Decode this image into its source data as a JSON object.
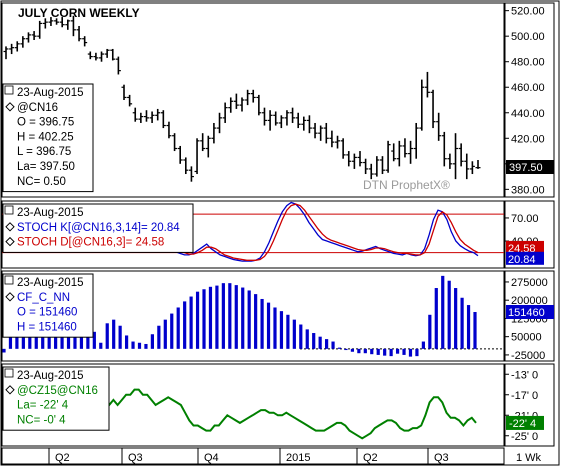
{
  "title": "JULY CORN WEEKLY",
  "watermark": "DTN ProphetX®",
  "x_axis": {
    "labels": [
      "Q2",
      "Q3",
      "Q4",
      "2015",
      "Q2",
      "Q3"
    ],
    "right_label": "1 Wk"
  },
  "panels": [
    {
      "id": "price",
      "legend": [
        {
          "text": "23-Aug-2015",
          "color": "#000000"
        },
        {
          "text": "@CN16",
          "color": "#000000",
          "marker": true
        },
        {
          "text": "O = 396.75",
          "color": "#000000"
        },
        {
          "text": "H = 402.25",
          "color": "#000000"
        },
        {
          "text": "L = 396.75",
          "color": "#000000"
        },
        {
          "text": "La= 397.50",
          "color": "#000000"
        },
        {
          "text": "NC= 0.50",
          "color": "#000000"
        }
      ],
      "y_ticks": [
        "520.00",
        "500.00",
        "480.00",
        "460.00",
        "440.00",
        "420.00",
        "400.00",
        "380.00"
      ],
      "last_badge": {
        "text": "397.50",
        "bg": "#000000",
        "fg": "#ffffff"
      }
    },
    {
      "id": "stoch",
      "legend": [
        {
          "text": "23-Aug-2015",
          "color": "#000000"
        },
        {
          "text": "STOCH K[@CN16,3,14]= 20.84",
          "color": "#0000cc",
          "marker": true
        },
        {
          "text": "STOCH D[@CN16,3]= 24.58",
          "color": "#cc0000",
          "marker": true
        }
      ],
      "y_ticks": [
        "70.00",
        "40.00"
      ],
      "badges": [
        {
          "text": "24.58",
          "bg": "#cc0000",
          "fg": "#ffffff"
        },
        {
          "text": "20.84",
          "bg": "#0000cc",
          "fg": "#ffffff"
        }
      ]
    },
    {
      "id": "cot",
      "legend": [
        {
          "text": "23-Aug-2015",
          "color": "#000000"
        },
        {
          "text": "CF_C_NN",
          "color": "#0000cc",
          "marker": true
        },
        {
          "text": "O = 151460",
          "color": "#0000cc"
        },
        {
          "text": "H = 151460",
          "color": "#0000cc"
        }
      ],
      "y_ticks": [
        "275000",
        "200000",
        "125000",
        "50000",
        "-25000"
      ],
      "last_badge": {
        "text": "151460",
        "bg": "#0000cc",
        "fg": "#ffffff"
      }
    },
    {
      "id": "spread",
      "legend": [
        {
          "text": "23-Aug-2015",
          "color": "#000000"
        },
        {
          "text": "@CZ15@CN16",
          "color": "#008000",
          "marker": true
        },
        {
          "text": "La= -22' 4",
          "color": "#008000"
        },
        {
          "text": "NC= -0' 4",
          "color": "#008000"
        }
      ],
      "y_ticks": [
        "-13' 0",
        "-17' 0",
        "-21' 0",
        "-25' 0"
      ],
      "last_badge": {
        "text": "-22' 4",
        "bg": "#008000",
        "fg": "#ffffff"
      }
    }
  ],
  "chart_data": [
    {
      "type": "ohlc",
      "title": "JULY CORN WEEKLY",
      "symbol": "@CN16",
      "ylim": [
        374,
        526
      ],
      "ohlc": [
        [
          488,
          492,
          482,
          490
        ],
        [
          490,
          494,
          486,
          491
        ],
        [
          491,
          496,
          488,
          494
        ],
        [
          494,
          500,
          491,
          498
        ],
        [
          498,
          503,
          495,
          501
        ],
        [
          501,
          504,
          497,
          500
        ],
        [
          500,
          512,
          498,
          510
        ],
        [
          510,
          514,
          506,
          511
        ],
        [
          511,
          515,
          508,
          512
        ],
        [
          512,
          514,
          509,
          511
        ],
        [
          511,
          515,
          507,
          509
        ],
        [
          509,
          513,
          505,
          512
        ],
        [
          512,
          516,
          500,
          505
        ],
        [
          505,
          508,
          496,
          498
        ],
        [
          498,
          500,
          492,
          495
        ],
        [
          486,
          488,
          482,
          484
        ],
        [
          484,
          487,
          481,
          483
        ],
        [
          483,
          488,
          480,
          486
        ],
        [
          486,
          490,
          483,
          489
        ],
        [
          489,
          490,
          481,
          482
        ],
        [
          482,
          484,
          470,
          473
        ],
        [
          460,
          462,
          450,
          452
        ],
        [
          452,
          454,
          445,
          447
        ],
        [
          440,
          444,
          433,
          435
        ],
        [
          435,
          440,
          432,
          437
        ],
        [
          437,
          442,
          433,
          436
        ],
        [
          436,
          441,
          432,
          438
        ],
        [
          438,
          443,
          434,
          440
        ],
        [
          440,
          442,
          428,
          430
        ],
        [
          430,
          433,
          420,
          422
        ],
        [
          422,
          424,
          410,
          412
        ],
        [
          412,
          414,
          400,
          403
        ],
        [
          403,
          405,
          392,
          395
        ],
        [
          395,
          398,
          386,
          390
        ],
        [
          394,
          420,
          392,
          418
        ],
        [
          418,
          424,
          410,
          412
        ],
        [
          412,
          422,
          405,
          420
        ],
        [
          420,
          432,
          416,
          428
        ],
        [
          428,
          440,
          424,
          436
        ],
        [
          436,
          448,
          432,
          444
        ],
        [
          444,
          452,
          440,
          449
        ],
        [
          449,
          455,
          443,
          446
        ],
        [
          446,
          452,
          441,
          450
        ],
        [
          450,
          458,
          446,
          455
        ],
        [
          455,
          458,
          448,
          452
        ],
        [
          452,
          454,
          438,
          440
        ],
        [
          440,
          444,
          430,
          434
        ],
        [
          434,
          442,
          426,
          438
        ],
        [
          438,
          441,
          430,
          432
        ],
        [
          432,
          438,
          428,
          436
        ],
        [
          436,
          442,
          430,
          440
        ],
        [
          440,
          444,
          432,
          436
        ],
        [
          436,
          440,
          428,
          431
        ],
        [
          431,
          437,
          426,
          434
        ],
        [
          434,
          438,
          424,
          428
        ],
        [
          428,
          432,
          420,
          424
        ],
        [
          424,
          430,
          418,
          428
        ],
        [
          428,
          432,
          416,
          420
        ],
        [
          420,
          426,
          413,
          417
        ],
        [
          417,
          422,
          412,
          418
        ],
        [
          418,
          420,
          404,
          407
        ],
        [
          407,
          410,
          398,
          402
        ],
        [
          402,
          408,
          396,
          405
        ],
        [
          405,
          410,
          398,
          401
        ],
        [
          401,
          404,
          392,
          396
        ],
        [
          396,
          400,
          388,
          392
        ],
        [
          392,
          406,
          390,
          403
        ],
        [
          403,
          406,
          392,
          395
        ],
        [
          395,
          418,
          393,
          415
        ],
        [
          410,
          416,
          402,
          404
        ],
        [
          404,
          418,
          398,
          414
        ],
        [
          414,
          420,
          405,
          408
        ],
        [
          408,
          418,
          400,
          412
        ],
        [
          412,
          432,
          404,
          428
        ],
        [
          428,
          466,
          426,
          460
        ],
        [
          460,
          472,
          452,
          456
        ],
        [
          456,
          458,
          428,
          433
        ],
        [
          433,
          440,
          418,
          422
        ],
        [
          422,
          425,
          398,
          404
        ],
        [
          404,
          408,
          396,
          400
        ],
        [
          400,
          424,
          388,
          412
        ],
        [
          412,
          416,
          398,
          402
        ],
        [
          402,
          408,
          388,
          396
        ],
        [
          396,
          402,
          392,
          398
        ],
        [
          397,
          403,
          396,
          397
        ]
      ]
    },
    {
      "type": "line",
      "title": "STOCH",
      "ylim": [
        5,
        92
      ],
      "reference_lines": [
        75,
        25
      ],
      "series": [
        {
          "name": "STOCH K[@CN16,3,14]",
          "color": "#0000cc",
          "values": [
            42,
            48,
            55,
            62,
            70,
            78,
            84,
            86,
            82,
            74,
            64,
            56,
            48,
            42,
            36,
            32,
            28,
            26,
            24,
            22,
            22,
            24,
            28,
            32,
            36,
            30,
            26,
            22,
            20,
            18,
            16,
            15,
            14,
            14,
            14,
            15,
            18,
            26,
            38,
            52,
            66,
            78,
            86,
            90,
            88,
            82,
            74,
            64,
            56,
            48,
            42,
            40,
            38,
            36,
            34,
            32,
            30,
            28,
            26,
            27,
            29,
            31,
            33,
            30,
            28,
            26,
            24,
            23,
            22,
            24,
            22,
            21,
            22,
            30,
            48,
            68,
            80,
            78,
            68,
            52,
            40,
            34,
            30,
            27,
            25,
            21
          ]
        },
        {
          "name": "STOCH D[@CN16,3]",
          "color": "#cc0000",
          "values": [
            40,
            44,
            50,
            57,
            64,
            72,
            79,
            83,
            83,
            79,
            72,
            64,
            56,
            49,
            43,
            38,
            33,
            30,
            27,
            25,
            23,
            23,
            25,
            28,
            32,
            32,
            30,
            26,
            22,
            20,
            18,
            17,
            16,
            15,
            15,
            15,
            16,
            20,
            28,
            40,
            54,
            68,
            80,
            86,
            88,
            86,
            80,
            72,
            64,
            56,
            49,
            44,
            41,
            39,
            37,
            35,
            33,
            31,
            29,
            28,
            28,
            29,
            31,
            31,
            30,
            28,
            26,
            25,
            24,
            24,
            23,
            22,
            22,
            25,
            36,
            54,
            72,
            78,
            74,
            64,
            52,
            42,
            36,
            32,
            28,
            25
          ]
        }
      ]
    },
    {
      "type": "bar",
      "title": "CF_C_NN",
      "ylim": [
        -50000,
        320000
      ],
      "zero_line": 0,
      "values": [
        -15000,
        140000,
        95000,
        115000,
        85000,
        65000,
        150000,
        160000,
        105000,
        90000,
        115000,
        140000,
        120000,
        65000,
        70000,
        25000,
        105000,
        120000,
        95000,
        55000,
        30000,
        25000,
        20000,
        60000,
        95000,
        120000,
        145000,
        170000,
        195000,
        215000,
        235000,
        245000,
        255000,
        260000,
        270000,
        270000,
        262000,
        252000,
        240000,
        225000,
        205000,
        190000,
        170000,
        155000,
        140000,
        120000,
        100000,
        80000,
        65000,
        50000,
        40000,
        30000,
        5000,
        -5000,
        -12000,
        -18000,
        -18000,
        -22000,
        -25000,
        -28000,
        -30000,
        -20000,
        -25000,
        -32000,
        -30000,
        30000,
        140000,
        250000,
        300000,
        280000,
        250000,
        210000,
        180000,
        151460
      ]
    },
    {
      "type": "line",
      "title": "@CZ15@CN16",
      "ylim": [
        -27,
        -11
      ],
      "series": [
        {
          "name": "@CZ15@CN16",
          "color": "#008000",
          "values": [
            -20,
            -19,
            -18,
            -19,
            -18,
            -17,
            -17,
            -16,
            -16,
            -17,
            -17,
            -18,
            -19,
            -18.5,
            -18,
            -17.5,
            -18,
            -18.5,
            -19,
            -20.5,
            -22,
            -23,
            -23,
            -23.5,
            -24,
            -24,
            -23,
            -23,
            -22,
            -21,
            -21.5,
            -22,
            -22.5,
            -22,
            -21.5,
            -21,
            -20.5,
            -20,
            -20,
            -20.5,
            -20.5,
            -21,
            -21,
            -20.5,
            -21,
            -21.5,
            -22,
            -22.5,
            -23,
            -23.5,
            -24,
            -24,
            -24,
            -23.5,
            -23,
            -22.5,
            -22.5,
            -23,
            -24,
            -24.5,
            -25,
            -25.5,
            -25,
            -24.5,
            -23.5,
            -23,
            -22.5,
            -22,
            -22,
            -22.5,
            -23.5,
            -24,
            -24,
            -23.5,
            -23.5,
            -23,
            -21,
            -18.5,
            -17.5,
            -17.5,
            -18.5,
            -20.5,
            -21.5,
            -21.5,
            -22,
            -23,
            -22,
            -21.5,
            -22.5
          ]
        }
      ]
    }
  ]
}
